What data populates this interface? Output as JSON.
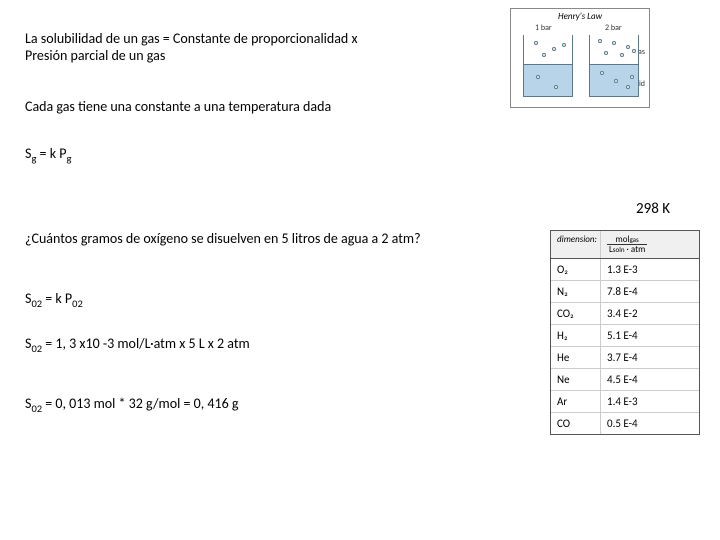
{
  "text": {
    "line1": "La solubilidad de un gas = Constante de proporcionalidad x",
    "line2": "Presión parcial de un gas",
    "line3": "Cada gas tiene una constante a una temperatura dada",
    "eq1_a": "S",
    "eq1_b": "g",
    "eq1_c": " = k P",
    "eq1_d": "g",
    "question": "¿Cuántos gramos de oxígeno se disuelven en 5 litros de agua a 2 atm?",
    "eq2_a": "S",
    "eq2_b": "02",
    "eq2_c": " = k P",
    "eq2_d": "02",
    "eq3_a": "S",
    "eq3_b": "02",
    "eq3_c": " = 1, 3 x10 -3 mol/L·atm  x 5 L  x 2 atm",
    "eq4_a": "S",
    "eq4_b": "02",
    "eq4_c": " = 0, 013 mol * 32 g/mol = 0, 416  g",
    "temp": "298 K"
  },
  "diagram": {
    "title": "Henry's Law",
    "bar1": "1 bar",
    "bar2": "2 bar",
    "gas": "gas",
    "liquid": "liquid"
  },
  "table": {
    "hdr_dim": "dimension:",
    "hdr_num": "mol",
    "hdr_sub": "gas",
    "hdr_den": "L",
    "hdr_den_sub": "soln",
    "hdr_den2": " · atm",
    "rows": [
      {
        "g": "O₂",
        "v": "1.3 E-3"
      },
      {
        "g": "N₂",
        "v": "7.8 E-4"
      },
      {
        "g": "CO₂",
        "v": "3.4 E-2"
      },
      {
        "g": "H₂",
        "v": "5.1 E-4"
      },
      {
        "g": "He",
        "v": "3.7 E-4"
      },
      {
        "g": "Ne",
        "v": "4.5 E-4"
      },
      {
        "g": "Ar",
        "v": "1.4 E-3"
      },
      {
        "g": "CO",
        "v": "0.5 E-4"
      }
    ]
  },
  "colors": {
    "liquid": "#b8d4e8",
    "border": "#5a7a8a"
  }
}
